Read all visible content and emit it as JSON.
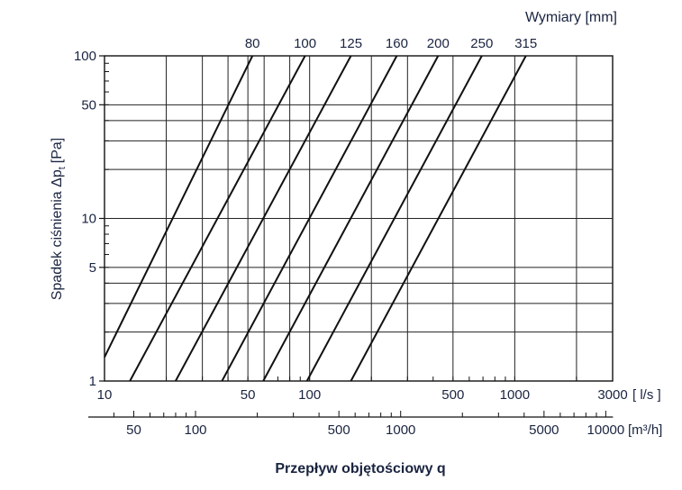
{
  "chart_data": {
    "type": "line",
    "title": "Wymiary [mm]",
    "xlabel": "Przepływ objętościowy q",
    "ylabel_main": "Spadek ciśnienia Δp",
    "ylabel_sub": "t",
    "ylabel_unit": "[Pa]",
    "x_unit_ls": "[ l/s ]",
    "x_unit_m3h": "[m³/h]",
    "x_scale": "log",
    "y_scale": "log",
    "xlim": [
      10,
      3000
    ],
    "ylim": [
      1,
      100
    ],
    "grid": true,
    "x_ticks_ls": [
      {
        "value": 10,
        "label": "10"
      },
      {
        "value": 50,
        "label": "50"
      },
      {
        "value": 100,
        "label": "100"
      },
      {
        "value": 500,
        "label": "500"
      },
      {
        "value": 1000,
        "label": "1000"
      },
      {
        "value": 3000,
        "label": "3000"
      }
    ],
    "x_ticks_m3h": [
      {
        "value": 50,
        "label": "50"
      },
      {
        "value": 100,
        "label": "100"
      },
      {
        "value": 500,
        "label": "500"
      },
      {
        "value": 1000,
        "label": "1000"
      },
      {
        "value": 5000,
        "label": "5000"
      },
      {
        "value": 10000,
        "label": "10000"
      }
    ],
    "y_ticks": [
      {
        "value": 1,
        "label": "1"
      },
      {
        "value": 5,
        "label": "5"
      },
      {
        "value": 10,
        "label": "10"
      },
      {
        "value": 50,
        "label": "50"
      },
      {
        "value": 100,
        "label": "100"
      }
    ],
    "x_grid_values": [
      20,
      30,
      40,
      50,
      60,
      80,
      100,
      200,
      300,
      500,
      1000,
      2000
    ],
    "y_grid_values": [
      2,
      3,
      4,
      5,
      20,
      30,
      40,
      50
    ],
    "series": [
      {
        "name": "80",
        "points": [
          [
            10,
            1.4
          ],
          [
            52.6,
            100
          ]
        ]
      },
      {
        "name": "100",
        "points": [
          [
            13.3,
            1
          ],
          [
            95,
            100
          ]
        ]
      },
      {
        "name": "125",
        "points": [
          [
            22.2,
            1
          ],
          [
            159,
            100
          ]
        ]
      },
      {
        "name": "160",
        "points": [
          [
            37.4,
            1
          ],
          [
            266,
            100
          ]
        ]
      },
      {
        "name": "200",
        "points": [
          [
            59.4,
            1
          ],
          [
            423,
            100
          ]
        ]
      },
      {
        "name": "250",
        "points": [
          [
            97,
            1
          ],
          [
            691,
            100
          ]
        ]
      },
      {
        "name": "315",
        "points": [
          [
            159,
            1
          ],
          [
            1133,
            100
          ]
        ]
      }
    ]
  }
}
